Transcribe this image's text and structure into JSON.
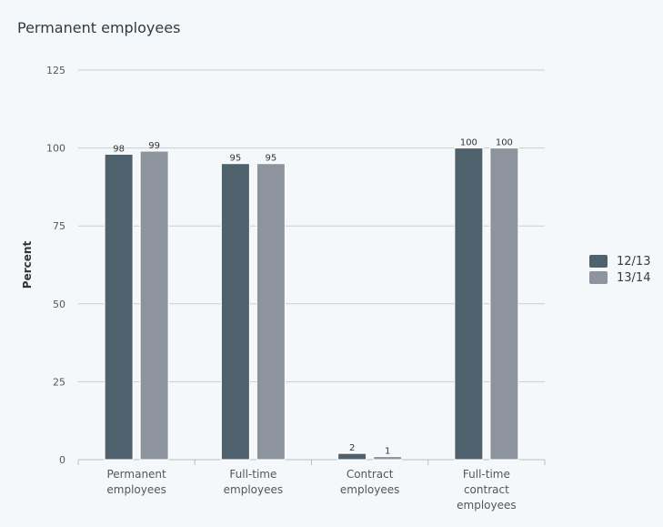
{
  "chart_data": {
    "type": "bar",
    "title": "Permanent employees",
    "xlabel": "",
    "ylabel": "Percent",
    "ylim": [
      0,
      125
    ],
    "yticks": [
      0,
      25,
      50,
      75,
      100,
      125
    ],
    "grid": true,
    "legend_position": "right",
    "categories": [
      [
        "Permanent",
        "employees"
      ],
      [
        "Full-time",
        "employees"
      ],
      [
        "Contract",
        "employees"
      ],
      [
        "Full-time",
        "contract",
        "employees"
      ]
    ],
    "series": [
      {
        "name": "12/13",
        "color": "#4f616d",
        "values": [
          98,
          95,
          2,
          100
        ]
      },
      {
        "name": "13/14",
        "color": "#8e949e",
        "values": [
          99,
          95,
          1,
          100
        ]
      }
    ]
  }
}
